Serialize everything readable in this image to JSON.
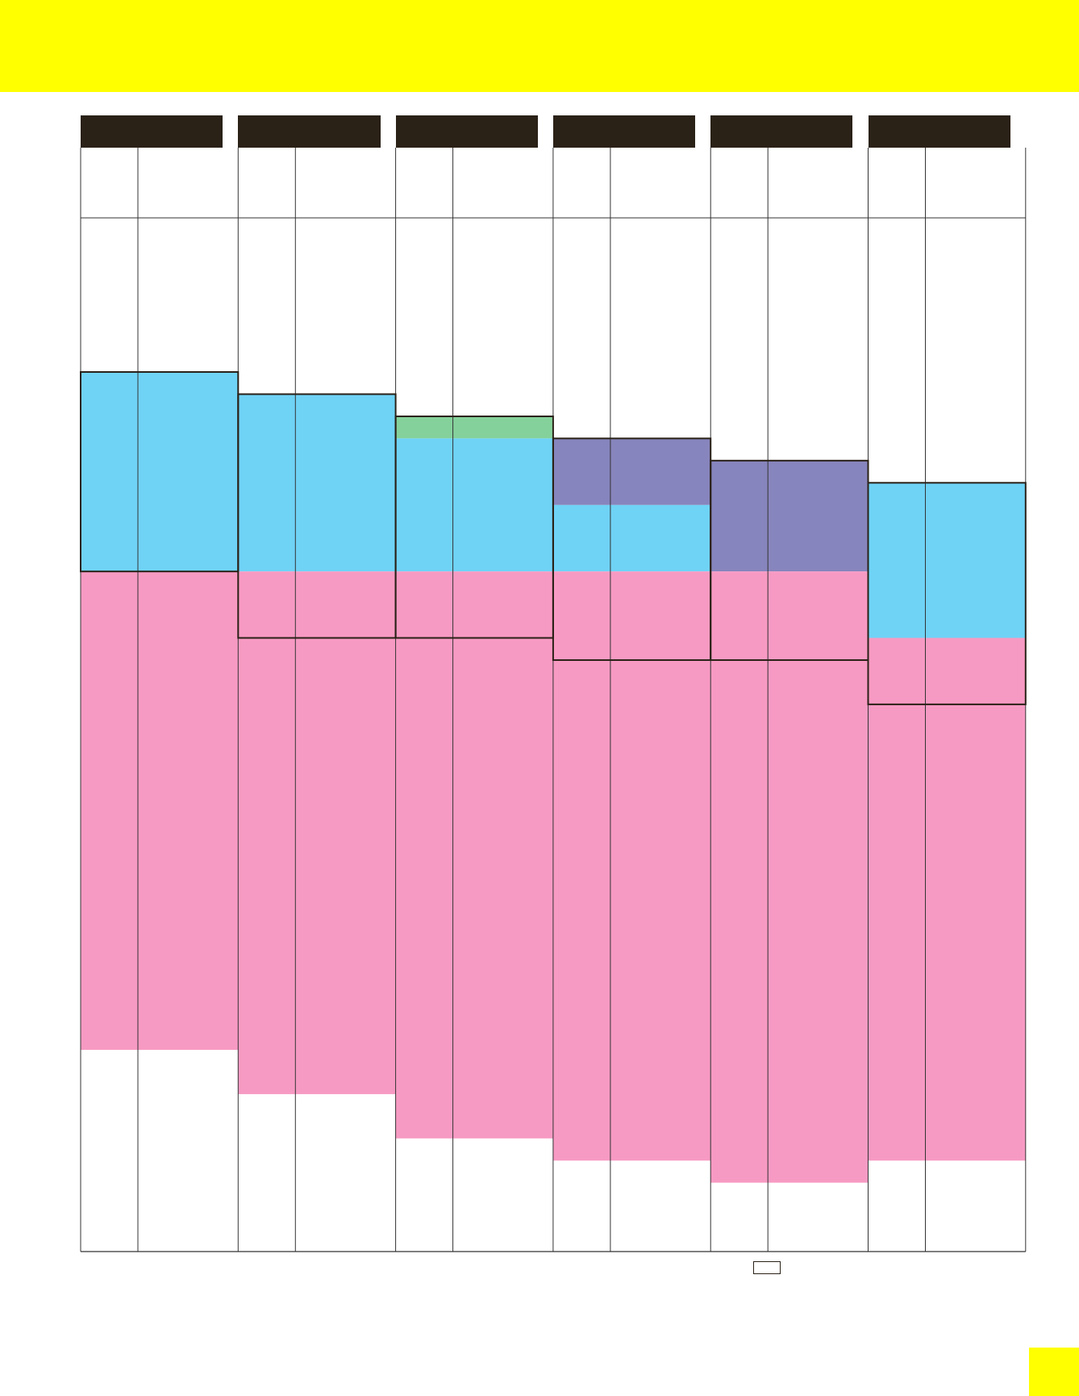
{
  "colors": {
    "banner": "#ffff00",
    "header": "#2a2117",
    "band_blue": "#6fd3f6",
    "band_pink": "#f79ac3",
    "band_purple": "#8785bd",
    "band_green": "#85d19b",
    "grid_line": "#333333",
    "outline": "#2a2117"
  },
  "schedule": {
    "groups": [
      {
        "header": "",
        "bands": [
          {
            "color": "blue",
            "start": 0.2032,
            "end": 0.3839
          },
          {
            "color": "pink",
            "start": 0.3839,
            "end": 0.8173
          }
        ],
        "outlines": [
          {
            "start": 0.2032,
            "end": 0.3839
          }
        ]
      },
      {
        "header": "",
        "bands": [
          {
            "color": "blue",
            "start": 0.2233,
            "end": 0.3839
          },
          {
            "color": "pink",
            "start": 0.3839,
            "end": 0.8574
          }
        ],
        "outlines": [
          {
            "start": 0.2233,
            "end": 0.4441
          }
        ]
      },
      {
        "header": "",
        "bands": [
          {
            "color": "green",
            "start": 0.2434,
            "end": 0.2634
          },
          {
            "color": "blue",
            "start": 0.2634,
            "end": 0.3839
          },
          {
            "color": "pink",
            "start": 0.3839,
            "end": 0.8975
          }
        ],
        "outlines": [
          {
            "start": 0.2434,
            "end": 0.4441
          }
        ]
      },
      {
        "header": "",
        "bands": [
          {
            "color": "purple",
            "start": 0.2634,
            "end": 0.3237
          },
          {
            "color": "blue",
            "start": 0.3237,
            "end": 0.3839
          },
          {
            "color": "pink",
            "start": 0.3839,
            "end": 0.9176
          }
        ],
        "outlines": [
          {
            "start": 0.2634,
            "end": 0.4642
          }
        ]
      },
      {
        "header": "",
        "bands": [
          {
            "color": "purple",
            "start": 0.2835,
            "end": 0.3839
          },
          {
            "color": "pink",
            "start": 0.3839,
            "end": 0.9376
          }
        ],
        "outlines": [
          {
            "start": 0.2835,
            "end": 0.4642
          }
        ]
      },
      {
        "header": "",
        "bands": [
          {
            "color": "blue",
            "start": 0.3036,
            "end": 0.4441
          },
          {
            "color": "pink",
            "start": 0.4441,
            "end": 0.9176
          }
        ],
        "outlines": [
          {
            "start": 0.3036,
            "end": 0.5043
          }
        ]
      }
    ]
  }
}
